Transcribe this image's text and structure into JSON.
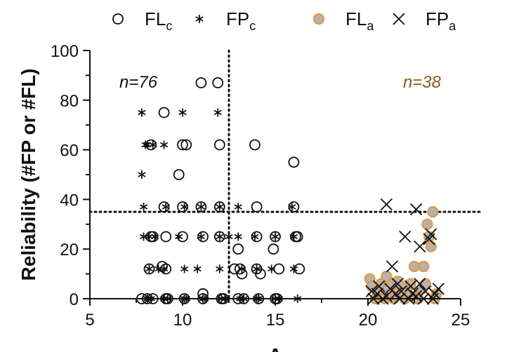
{
  "chart_data": {
    "type": "scatter",
    "xlabel": "A",
    "ylabel": "Reliability (#FP or #FL)",
    "xlim": [
      5,
      25
    ],
    "ylim": [
      0,
      100
    ],
    "x_ticks": [
      "5",
      "10",
      "15",
      "20",
      "25"
    ],
    "y_ticks": [
      "0",
      "20",
      "40",
      "60",
      "80",
      "100"
    ],
    "threshold_x": 12.5,
    "threshold_y": 35,
    "annotations": [
      {
        "text": "n=76",
        "color": "#111111"
      },
      {
        "text": "n=38",
        "color": "#8a5a1a"
      }
    ],
    "series": [
      {
        "name": "FLc",
        "base": "FL",
        "sub": "c",
        "marker": "open-circle",
        "x": [
          7.8,
          8.1,
          8.2,
          8.3,
          8.3,
          8.4,
          8.4,
          8.9,
          9.0,
          9.0,
          9.1,
          9.1,
          9.1,
          9.2,
          9.8,
          10.0,
          10.1,
          10.0,
          10.0,
          10.2,
          11.0,
          11.0,
          11.1,
          11.1,
          11.1,
          11.9,
          12.0,
          12.0,
          12.0,
          12.1,
          12.2,
          12.8,
          13.0,
          13.0,
          13.1,
          13.2,
          13.3,
          13.9,
          14.0,
          14.0,
          14.0,
          14.1,
          14.2,
          14.9,
          15.0,
          15.0,
          15.1,
          15.2,
          16.0,
          16.0,
          16.1,
          16.2,
          16.3
        ],
        "y": [
          0,
          0,
          12,
          25,
          62,
          0,
          25,
          13,
          75,
          37,
          25,
          12,
          0,
          0,
          50,
          62,
          0,
          37,
          25,
          62,
          87,
          37,
          25,
          2,
          0,
          87,
          62,
          37,
          25,
          0,
          0,
          12,
          20,
          0,
          12,
          10,
          0,
          62,
          37,
          25,
          12,
          0,
          10,
          20,
          25,
          0,
          0,
          12,
          55,
          37,
          25,
          25,
          12
        ]
      },
      {
        "name": "FPc",
        "base": "FP",
        "sub": "c",
        "marker": "asterisk",
        "x": [
          7.8,
          7.8,
          7.9,
          7.9,
          8.0,
          8.1,
          8.1,
          8.2,
          8.2,
          8.3,
          8.4,
          8.5,
          8.7,
          9.0,
          9.0,
          9.0,
          9.1,
          9.2,
          9.8,
          10.0,
          10.1,
          10.1,
          10.1,
          10.2,
          10.8,
          11.0,
          11.0,
          11.1,
          11.2,
          11.9,
          12.0,
          12.0,
          12.0,
          12.1,
          12.3,
          12.5,
          13.0,
          13.0,
          13.1,
          13.2,
          13.3,
          13.9,
          14.0,
          14.0,
          14.1,
          14.8,
          15.0,
          15.0,
          15.2,
          15.9,
          16.0,
          16.0,
          16.2
        ],
        "y": [
          75,
          50,
          37,
          25,
          62,
          62,
          0,
          25,
          12,
          0,
          62,
          25,
          12,
          62,
          12,
          0,
          37,
          0,
          25,
          75,
          37,
          12,
          0,
          0,
          12,
          37,
          25,
          0,
          0,
          75,
          37,
          25,
          12,
          0,
          0,
          25,
          37,
          25,
          0,
          12,
          0,
          25,
          12,
          0,
          0,
          12,
          25,
          0,
          0,
          37,
          25,
          12,
          0
        ]
      },
      {
        "name": "FLa",
        "base": "FL",
        "sub": "a",
        "marker": "filled-circle",
        "x": [
          20.1,
          20.2,
          20.4,
          20.5,
          20.7,
          20.8,
          20.9,
          21.0,
          21.1,
          21.3,
          21.4,
          21.5,
          21.6,
          21.8,
          22.0,
          22.1,
          22.3,
          22.5,
          22.6,
          22.7,
          22.9,
          23.0,
          23.1,
          23.2,
          23.3,
          23.4,
          23.5,
          23.6,
          23.7
        ],
        "y": [
          8,
          5,
          0,
          3,
          6,
          1,
          0,
          9,
          4,
          6,
          0,
          2,
          7,
          5,
          0,
          3,
          6,
          13,
          1,
          0,
          4,
          13,
          6,
          30,
          25,
          21,
          35,
          0,
          2
        ]
      },
      {
        "name": "FPa",
        "base": "FP",
        "sub": "a",
        "marker": "cross",
        "x": [
          20.2,
          20.3,
          20.5,
          20.6,
          20.8,
          21.0,
          21.0,
          21.2,
          21.3,
          21.5,
          21.6,
          21.7,
          21.8,
          22.0,
          22.2,
          22.3,
          22.4,
          22.6,
          22.6,
          22.8,
          22.8,
          23.0,
          23.1,
          23.3,
          23.4,
          23.5,
          23.6,
          23.8
        ],
        "y": [
          3,
          0,
          2,
          5,
          0,
          38,
          1,
          4,
          13,
          2,
          6,
          0,
          3,
          25,
          0,
          5,
          2,
          36,
          1,
          21,
          6,
          0,
          3,
          24,
          26,
          0,
          2,
          4
        ]
      }
    ]
  }
}
